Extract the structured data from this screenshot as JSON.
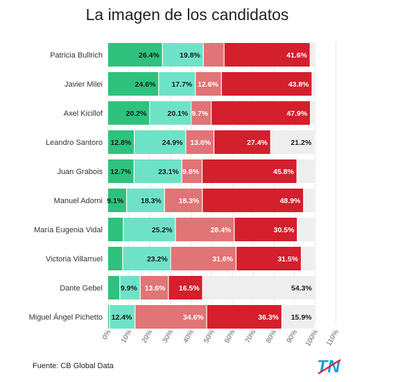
{
  "title": "La imagen de los candidatos",
  "source": "Fuente: CB Global Data",
  "logo_text": "TN",
  "colors": {
    "green": "#2ec27e",
    "teal": "#6ee2c7",
    "pink": "#e07476",
    "red": "#d41f2c",
    "gray": "#eeeeee"
  },
  "chart_data": {
    "type": "bar",
    "orientation": "horizontal",
    "stacked": true,
    "title": "La imagen de los candidatos",
    "xlim": [
      0,
      110
    ],
    "x_ticks": [
      "0%",
      "10%",
      "20%",
      "30%",
      "40%",
      "50%",
      "60%",
      "70%",
      "80%",
      "90%",
      "100%",
      "110%"
    ],
    "grid": true,
    "legend": "none",
    "categories": [
      "Patricia Bullrich",
      "Javier Milei",
      "Axel Kicillof",
      "Leandro Santoro",
      "Juan Grabois",
      "Manuel Adorni",
      "María Eugenia Vidal",
      "Victoria Villarruel",
      "Dante Gebel",
      "Miguel Ángel Pichetto"
    ],
    "series": [
      {
        "color": "#2ec27e",
        "values": [
          26.4,
          24.6,
          20.2,
          12.8,
          12.7,
          9.1,
          7.5,
          7.2,
          5.8,
          0.8
        ],
        "labels": [
          "26.4%",
          "24.6%",
          "20.2%",
          "12.8%",
          "12.7%",
          "9.1%",
          "",
          "",
          "",
          ""
        ]
      },
      {
        "color": "#6ee2c7",
        "values": [
          19.8,
          17.7,
          20.1,
          24.9,
          23.1,
          18.3,
          25.2,
          23.2,
          9.9,
          12.4
        ],
        "labels": [
          "19.8%",
          "17.7%",
          "20.1%",
          "24.9%",
          "23.1%",
          "18.3%",
          "25.2%",
          "23.2%",
          "9.9%",
          "12.4%"
        ]
      },
      {
        "color": "#e07476",
        "values": [
          10.0,
          12.6,
          9.7,
          13.6,
          9.8,
          18.3,
          28.4,
          31.6,
          13.6,
          34.6
        ],
        "labels": [
          "",
          "12.6%",
          "9.7%",
          "13.6%",
          "9.8%",
          "18.3%",
          "28.4%",
          "31.6%",
          "13.6%",
          "34.6%"
        ]
      },
      {
        "color": "#d41f2c",
        "values": [
          41.6,
          43.8,
          47.9,
          27.4,
          45.8,
          48.9,
          30.5,
          31.5,
          16.5,
          36.3
        ],
        "labels": [
          "41.6%",
          "43.8%",
          "47.9%",
          "27.4%",
          "45.8%",
          "48.9%",
          "30.5%",
          "31.5%",
          "16.5%",
          "36.3%"
        ]
      },
      {
        "color": "#eeeeee",
        "values": [
          2.2,
          1.3,
          2.1,
          21.2,
          8.6,
          5.4,
          8.4,
          6.5,
          54.3,
          15.9
        ],
        "labels": [
          "",
          "",
          "",
          "21.2%",
          "",
          "",
          "",
          "",
          "54.3%",
          "15.9%"
        ]
      }
    ]
  }
}
